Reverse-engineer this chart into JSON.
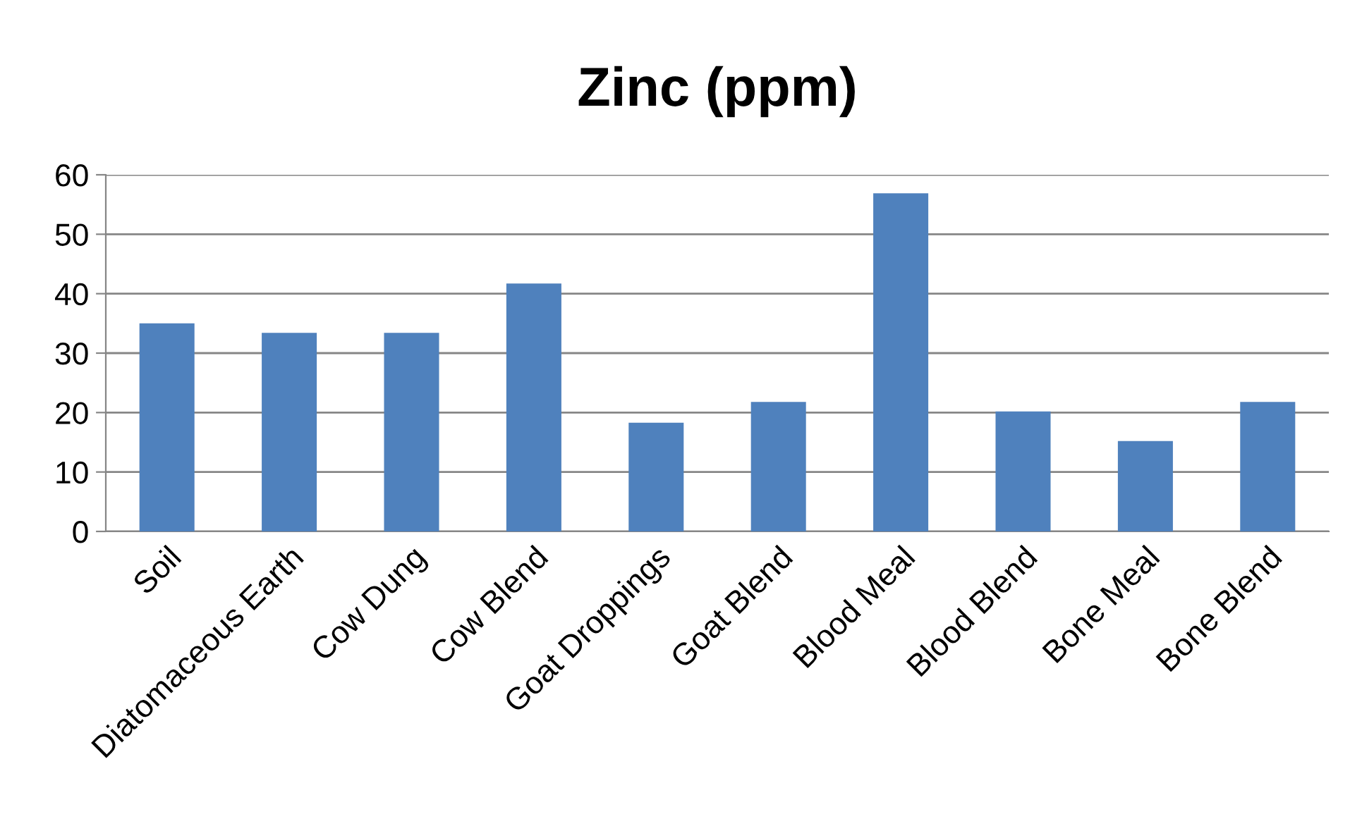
{
  "chart_data": {
    "type": "bar",
    "title": "Zinc (ppm)",
    "categories": [
      "Soil",
      "Diatomaceous Earth",
      "Cow Dung",
      "Cow Blend",
      "Goat Droppings",
      "Goat Blend",
      "Blood Meal",
      "Blood Blend",
      "Bone Meal",
      "Bone Blend"
    ],
    "values": [
      35,
      33.4,
      33.4,
      41.7,
      18.3,
      21.8,
      56.9,
      20.2,
      15.2,
      21.8
    ],
    "color": "#4f81bd",
    "ylim": [
      0,
      60
    ],
    "yticks": [
      0,
      10,
      20,
      30,
      40,
      50,
      60
    ],
    "grid": "y",
    "legend": false
  }
}
